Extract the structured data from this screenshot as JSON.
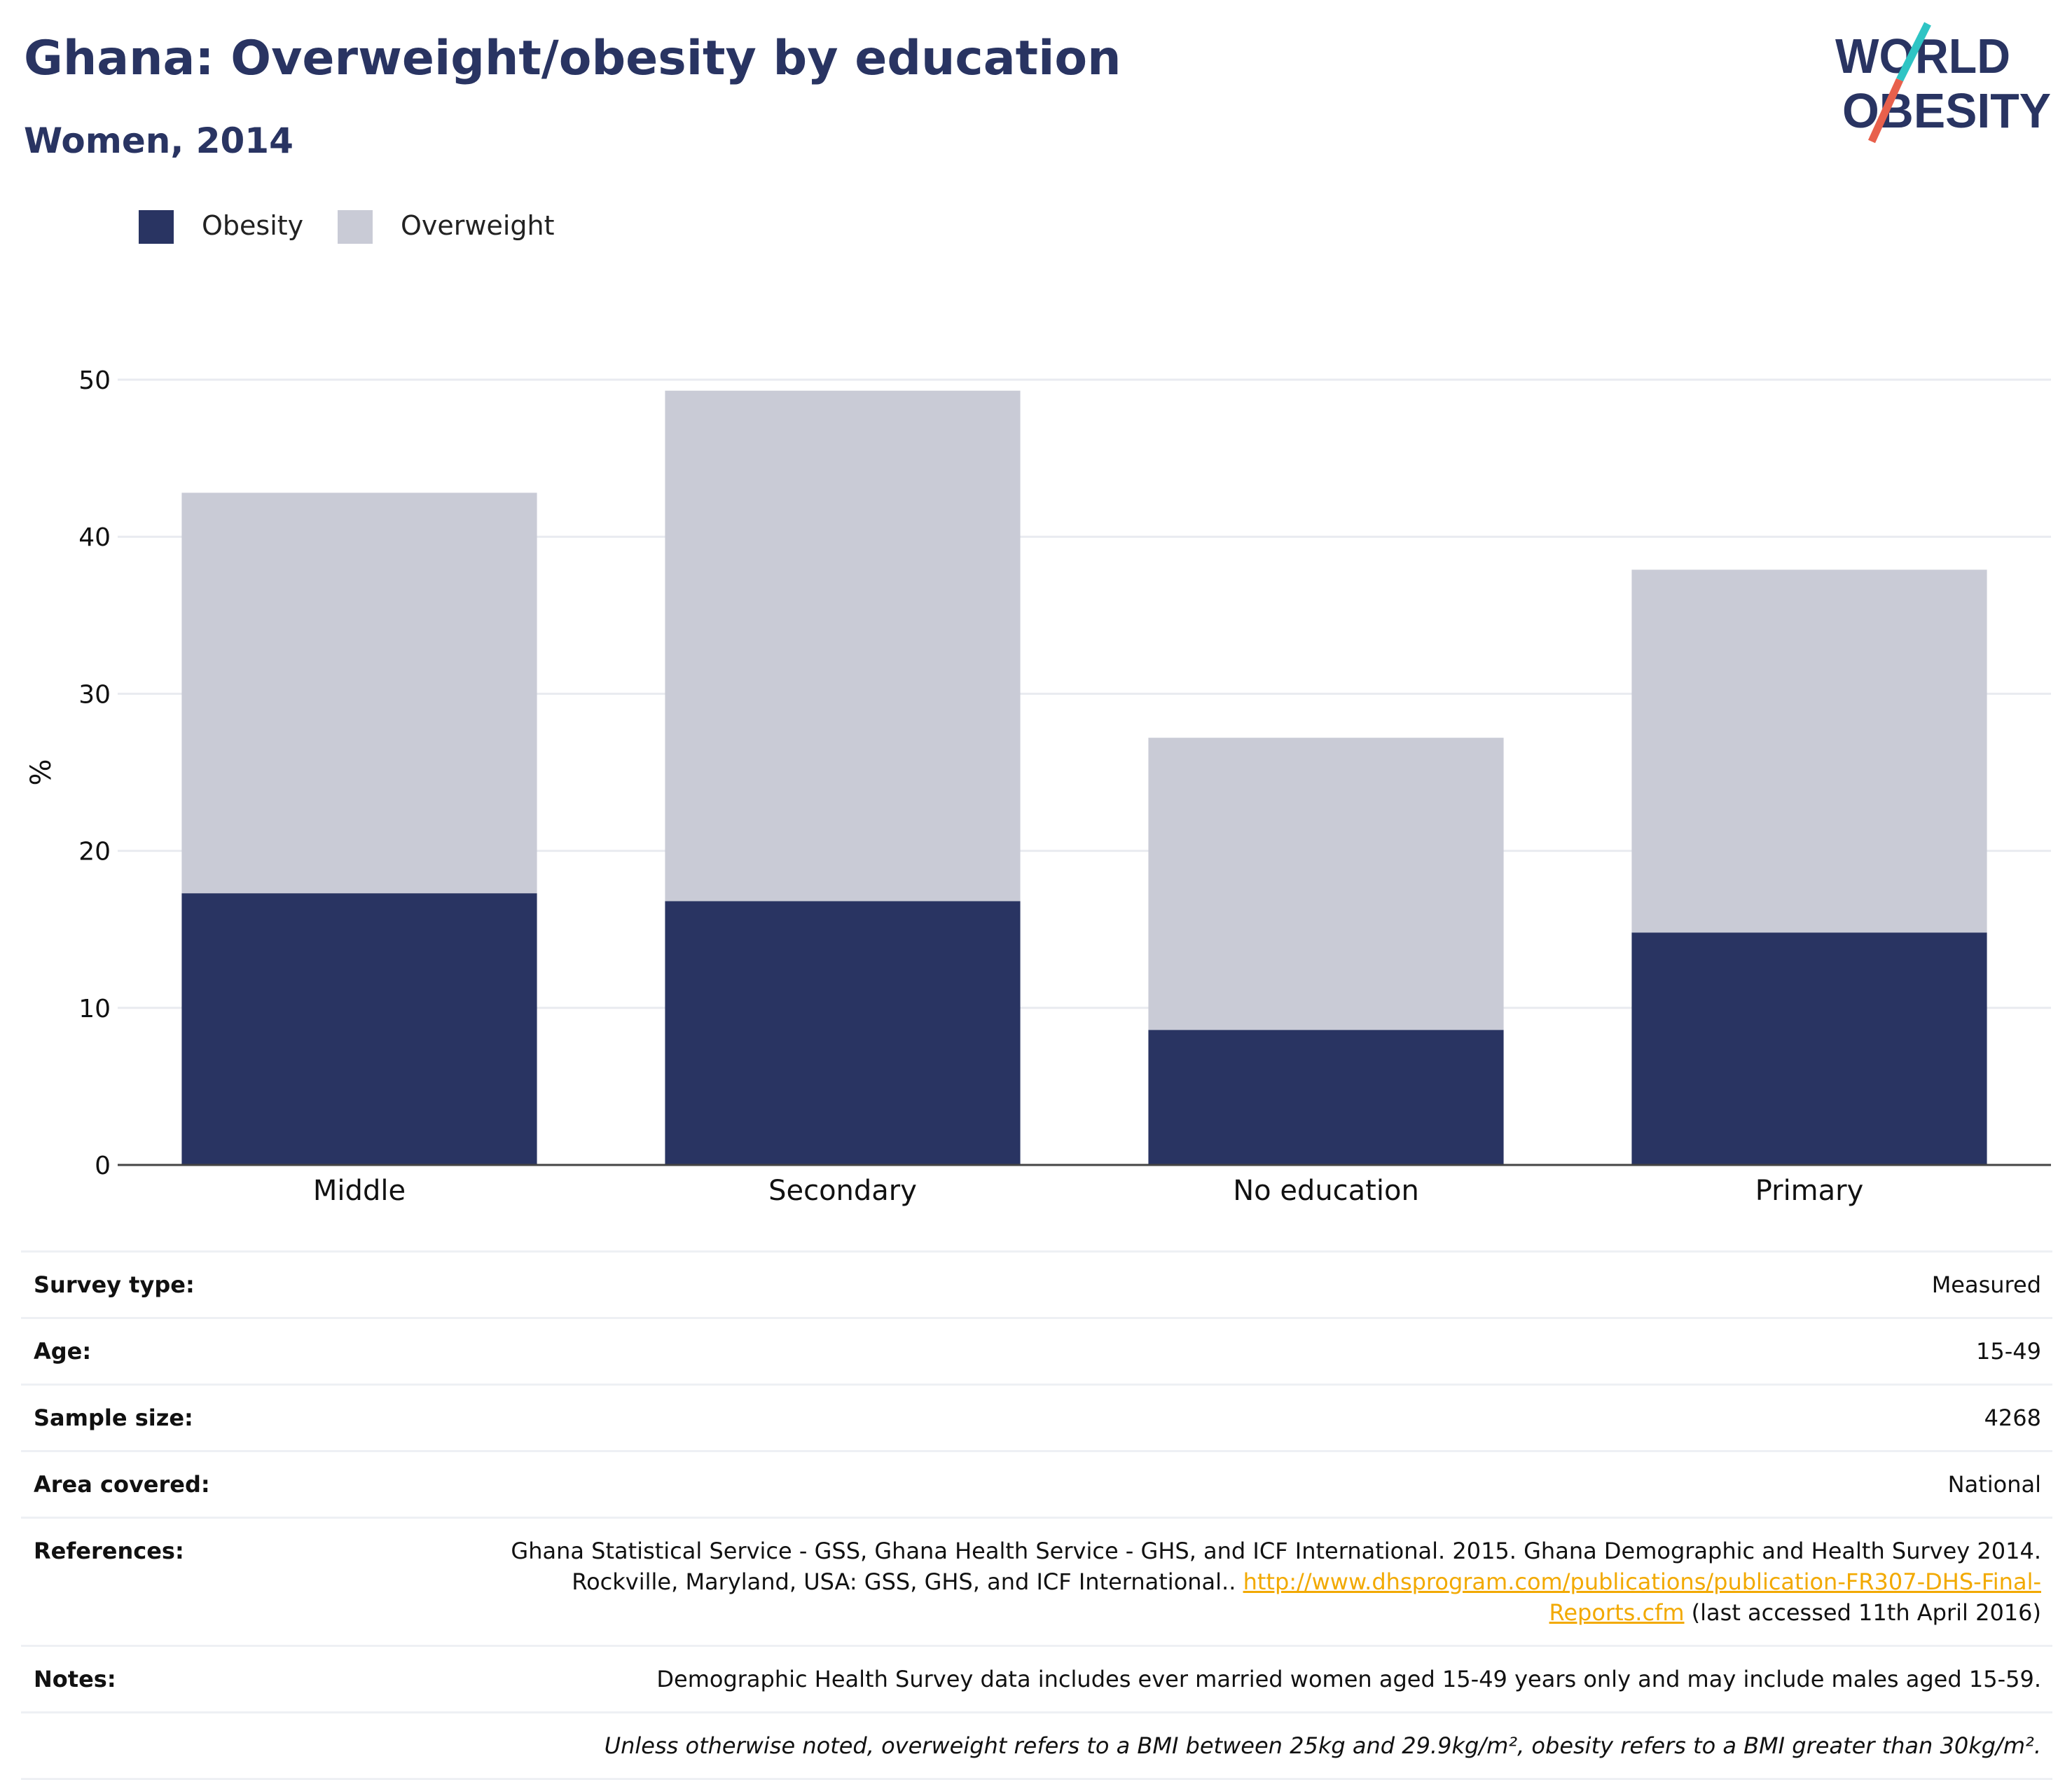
{
  "header": {
    "title": "Ghana: Overweight/obesity by education",
    "subtitle": "Women, 2014"
  },
  "logo": {
    "line1": "WORLD",
    "line2": "OBESITY",
    "colors": {
      "text": "#293462",
      "slash_top": "#2ec4c4",
      "slash_bottom": "#e8604c"
    }
  },
  "colors": {
    "obesity": "#293462",
    "overweight": "#c9cbd6",
    "grid": "#e9ebf0",
    "axis": "#444444",
    "link": "#f2a900",
    "title": "#293462"
  },
  "legend": {
    "items": [
      {
        "label": "Obesity",
        "color": "#293462"
      },
      {
        "label": "Overweight",
        "color": "#c9cbd6"
      }
    ]
  },
  "chart_data": {
    "type": "bar",
    "stacked": true,
    "categories": [
      "Middle",
      "Secondary",
      "No education",
      "Primary"
    ],
    "series": [
      {
        "name": "Obesity",
        "values": [
          17.3,
          16.8,
          8.6,
          14.8
        ]
      },
      {
        "name": "Overweight",
        "values": [
          25.5,
          32.5,
          18.6,
          23.1
        ]
      }
    ],
    "totals": [
      42.8,
      49.3,
      27.2,
      37.9
    ],
    "ylabel": "%",
    "ylim": [
      0,
      50
    ],
    "yticks": [
      0,
      10,
      20,
      30,
      40,
      50
    ],
    "grid": true,
    "legend_position": "top-left"
  },
  "info": {
    "survey_type": {
      "label": "Survey type:",
      "value": "Measured"
    },
    "age": {
      "label": "Age:",
      "value": "15-49"
    },
    "sample_size": {
      "label": "Sample size:",
      "value": "4268"
    },
    "area_covered": {
      "label": "Area covered:",
      "value": "National"
    },
    "references": {
      "label": "References:",
      "text_line1": "Ghana Statistical Service - GSS, Ghana Health Service - GHS, and ICF International. 2015. Ghana Demographic and Health Survey 2014.",
      "text_line2": "Rockville, Maryland, USA: GSS, GHS, and ICF International.. ",
      "link_part1": "http://www.dhsprogram.com/publications/publication-FR307-DHS-Final-",
      "link_part2": "Reports.cfm",
      "suffix": " (last accessed 11th April 2016)"
    },
    "notes": {
      "label": "Notes:",
      "value": "Demographic Health Survey data includes ever married women aged 15-49 years only and may include males aged 15-59."
    },
    "definition": "Unless otherwise noted, overweight refers to a BMI between 25kg and 29.9kg/m², obesity refers to a BMI greater than 30kg/m²."
  }
}
